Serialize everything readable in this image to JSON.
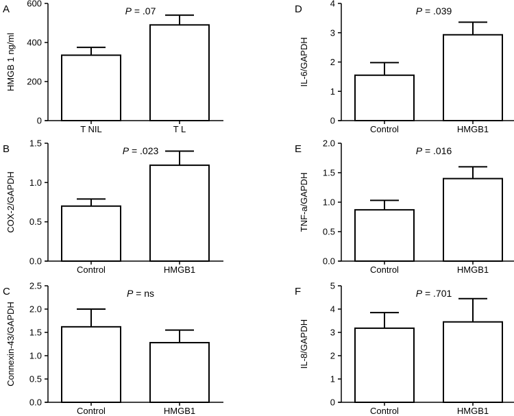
{
  "chart_data": [
    {
      "panel": "A",
      "type": "bar",
      "ylabel": "HMGB 1 ng/ml",
      "categories": [
        "T NIL",
        "T L"
      ],
      "values": [
        335,
        490
      ],
      "errors": [
        40,
        50
      ],
      "ylim": [
        0,
        600
      ],
      "yticks": [
        "0",
        "200",
        "400",
        "600"
      ],
      "annotation": {
        "italic": "P",
        "text": " = .07"
      }
    },
    {
      "panel": "B",
      "type": "bar",
      "ylabel": "COX-2/GAPDH",
      "categories": [
        "Control",
        "HMGB1"
      ],
      "values": [
        0.7,
        1.22
      ],
      "errors": [
        0.09,
        0.18
      ],
      "ylim": [
        0,
        1.5
      ],
      "yticks": [
        "0.0",
        "0.5",
        "1.0",
        "1.5"
      ],
      "annotation": {
        "italic": "P",
        "text": " = .023"
      }
    },
    {
      "panel": "C",
      "type": "bar",
      "ylabel": "Connexin-43/GAPDH",
      "categories": [
        "Control",
        "HMGB1"
      ],
      "values": [
        1.62,
        1.28
      ],
      "errors": [
        0.38,
        0.27
      ],
      "ylim": [
        0,
        2.5
      ],
      "yticks": [
        "0.0",
        "0.5",
        "1.0",
        "1.5",
        "2.0",
        "2.5"
      ],
      "annotation": {
        "italic": "P",
        "text": " = ns"
      }
    },
    {
      "panel": "D",
      "type": "bar",
      "ylabel": "IL-6/GAPDH",
      "categories": [
        "Control",
        "HMGB1"
      ],
      "values": [
        1.55,
        2.93
      ],
      "errors": [
        0.43,
        0.43
      ],
      "ylim": [
        0,
        4
      ],
      "yticks": [
        "0",
        "1",
        "2",
        "3",
        "4"
      ],
      "annotation": {
        "italic": "P",
        "text": " = .039"
      }
    },
    {
      "panel": "E",
      "type": "bar",
      "ylabel": "TNF-a/GAPDH",
      "categories": [
        "Control",
        "HMGB1"
      ],
      "values": [
        0.87,
        1.4
      ],
      "errors": [
        0.16,
        0.2
      ],
      "ylim": [
        0,
        2.0
      ],
      "yticks": [
        "0.0",
        "0.5",
        "1.0",
        "1.5",
        "2.0"
      ],
      "annotation": {
        "italic": "P",
        "text": " = .016"
      }
    },
    {
      "panel": "F",
      "type": "bar",
      "ylabel": "IL-8/GAPDH",
      "categories": [
        "Control",
        "HMGB1"
      ],
      "values": [
        3.18,
        3.45
      ],
      "errors": [
        0.67,
        1.0
      ],
      "ylim": [
        0,
        5
      ],
      "yticks": [
        "0",
        "1",
        "2",
        "3",
        "4",
        "5"
      ],
      "annotation": {
        "italic": "P",
        "text": " = .701"
      }
    }
  ]
}
